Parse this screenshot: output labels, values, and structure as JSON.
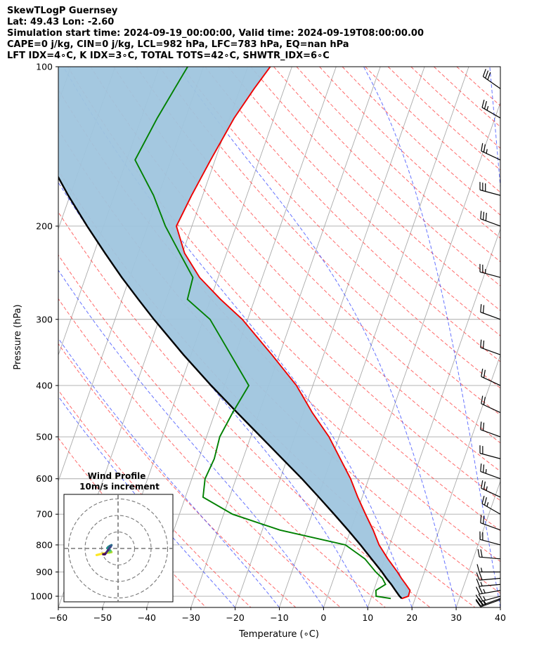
{
  "header": {
    "line1": "SkewTLogP Guernsey",
    "line2": "Lat: 49.43   Lon: -2.60",
    "line3": "Simulation start time: 2024-09-19_00:00:00, Valid time: 2024-09-19T08:00:00.00",
    "line4": "CAPE=0 j/kg, CIN=0 j/kg, LCL=982 hPa, LFC=783 hPa, EQ=nan hPa",
    "line5": "LFT IDX=4∘C, K IDX=3∘C, TOTAL TOTS=42∘C, SHWTR_IDX=6∘C"
  },
  "chart_data": [
    {
      "type": "line",
      "subtype": "skew-t-log-p",
      "xlabel": "Temperature (∘C)",
      "ylabel": "Pressure (hPa)",
      "x_ticks": [
        -60,
        -50,
        -40,
        -30,
        -20,
        -10,
        0,
        10,
        20,
        30,
        40
      ],
      "y_ticks": [
        100,
        200,
        300,
        400,
        500,
        600,
        700,
        800,
        900,
        1000
      ],
      "xlim": [
        -60,
        40
      ],
      "ylim": [
        1050,
        100
      ],
      "y_scale": "log",
      "grid": true,
      "colors": {
        "temperature": "#ee0000",
        "dewpoint": "#008000",
        "parcel": "#000000",
        "fill": "#9fc5de",
        "dry_adiabat": "#ff4444",
        "moist_adiabat": "#3344ff",
        "mixing_ratio": "#9933cc",
        "isotherm": "#aaaaaa"
      },
      "series": [
        {
          "key": "temperature",
          "p": [
            1010,
            1000,
            975,
            950,
            925,
            900,
            850,
            800,
            750,
            700,
            650,
            600,
            550,
            500,
            450,
            400,
            350,
            300,
            275,
            250,
            225,
            200,
            175,
            150,
            125,
            110,
            100
          ],
          "t": [
            17.0,
            18.3,
            18.2,
            16.8,
            15.3,
            13.9,
            10.7,
            7.6,
            5.1,
            2.1,
            -1.0,
            -4.1,
            -8.0,
            -12.3,
            -18.0,
            -23.7,
            -31.7,
            -41.2,
            -47.7,
            -54.2,
            -59.5,
            -63.5,
            -62.5,
            -61.0,
            -59.0,
            -56.8,
            -54.9
          ]
        },
        {
          "key": "dewpoint",
          "p": [
            1010,
            1000,
            975,
            950,
            925,
            900,
            850,
            800,
            750,
            700,
            650,
            600,
            550,
            500,
            450,
            400,
            350,
            300,
            275,
            250,
            225,
            200,
            175,
            150,
            125,
            110,
            100
          ],
          "t": [
            14.5,
            11.0,
            10.5,
            12.2,
            11.0,
            9.0,
            5.5,
            0.0,
            -16.0,
            -28.0,
            -36.0,
            -37.0,
            -36.5,
            -37.0,
            -36.0,
            -34.5,
            -41.0,
            -48.5,
            -55.2,
            -55.7,
            -60.6,
            -66.0,
            -71.1,
            -78.1,
            -76.4,
            -74.8,
            -73.6
          ]
        },
        {
          "key": "parcel",
          "p": [
            1010,
            1000,
            975,
            950,
            925,
            900,
            850,
            800,
            750,
            700,
            650,
            600,
            550,
            500,
            450,
            400,
            350,
            300,
            275,
            250,
            225,
            200,
            175,
            150,
            125,
            110,
            100
          ],
          "t": [
            17.0,
            16.3,
            14.9,
            13.5,
            11.9,
            10.4,
            7.0,
            3.4,
            -0.6,
            -5.0,
            -9.8,
            -15.1,
            -21.1,
            -27.7,
            -35.0,
            -43.0,
            -51.7,
            -61.2,
            -66.3,
            -71.8,
            -77.5,
            -83.7,
            -90.4,
            -97.6,
            -105.6,
            -110.8,
            -114.4
          ]
        }
      ]
    },
    {
      "type": "line",
      "subtype": "hodograph",
      "title": "Wind Profile",
      "subtitle": "10m/s increment",
      "ring_increment_ms": 10,
      "grid": true,
      "colormap": "viridis",
      "u": [
        -13.0,
        -9.0,
        -5.5,
        -4.0,
        -5.0,
        -4.5,
        -5.0,
        -6.0,
        -6.5,
        -6.0,
        -5.0,
        -4.0,
        -4.5,
        -5.0,
        -6.0,
        -7.5,
        -8.0,
        -9.0
      ],
      "v": [
        -4.0,
        -3.0,
        -2.5,
        -2.2,
        -2.0,
        -1.5,
        -1.0,
        -0.4,
        0.2,
        0.8,
        1.5,
        2.0,
        1.0,
        0.5,
        -1.0,
        -3.0,
        -3.5,
        -3.5
      ]
    },
    {
      "type": "barbs",
      "units": "kt",
      "p": [
        1015,
        1010,
        1000,
        975,
        950,
        925,
        900,
        850,
        800,
        750,
        700,
        650,
        600,
        550,
        500,
        450,
        400,
        350,
        300,
        250,
        200,
        175,
        150,
        125,
        110
      ],
      "speed": [
        25,
        25,
        25,
        25,
        15,
        20,
        15,
        20,
        20,
        20,
        25,
        25,
        25,
        20,
        20,
        20,
        20,
        20,
        20,
        25,
        30,
        30,
        25,
        25,
        30
      ],
      "dir": [
        250,
        250,
        255,
        260,
        265,
        265,
        270,
        275,
        285,
        290,
        300,
        295,
        290,
        285,
        290,
        295,
        295,
        290,
        290,
        285,
        290,
        285,
        295,
        300,
        305
      ]
    }
  ]
}
